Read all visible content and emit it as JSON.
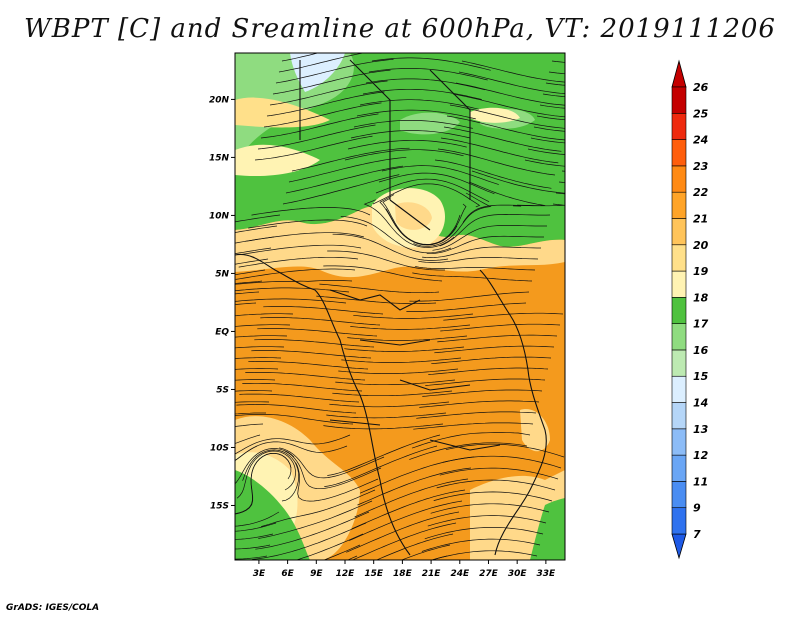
{
  "header": {
    "title": "WBPT [C] and Sreamline at 600hPa, VT: 2019111206"
  },
  "footer": {
    "credit": "GrADS: IGES/COLA"
  },
  "chart_data": {
    "type": "heatmap",
    "title": "WBPT [C] and Sreamline at 600hPa, VT: 2019111206",
    "variable": "WBPT [C]",
    "overlay": "streamlines",
    "level": "600hPa",
    "valid_time": "2019111206",
    "x_ticks": [
      "3E",
      "6E",
      "9E",
      "12E",
      "15E",
      "18E",
      "21E",
      "24E",
      "27E",
      "30E",
      "33E"
    ],
    "x_tick_values": [
      3,
      6,
      9,
      12,
      15,
      18,
      21,
      24,
      27,
      30,
      33
    ],
    "y_ticks": [
      "20N",
      "15N",
      "10N",
      "5N",
      "EQ",
      "5S",
      "10S",
      "15S"
    ],
    "y_tick_values": [
      20,
      15,
      10,
      5,
      0,
      -5,
      -10,
      -15
    ],
    "xlim": [
      0.5,
      35.0
    ],
    "ylim": [
      -19.7,
      24.0
    ],
    "colorbar": {
      "levels": [
        "7",
        "9",
        "11",
        "12",
        "13",
        "14",
        "15",
        "16",
        "17",
        "18",
        "19",
        "20",
        "21",
        "22",
        "23",
        "24",
        "25",
        "26"
      ],
      "colors": [
        "#1e5ae6",
        "#2f72ef",
        "#4a8df2",
        "#6aa6f5",
        "#8cbcf7",
        "#b5d6f8",
        "#dcefff",
        "#bdeab2",
        "#8fdc80",
        "#4fc23f",
        "#fff3b3",
        "#ffe08a",
        "#ffc45a",
        "#ffa428",
        "#ff8a14",
        "#ff5e0c",
        "#ef2a0e",
        "#c40000"
      ]
    },
    "field_colors": {
      "cool_green": "#8fdc80",
      "green": "#4fc23f",
      "light_yellow": "#fff3b3",
      "tan": "#ffd98a",
      "orange": "#f7a531",
      "dark_orange": "#f49a1d",
      "pale_blue": "#dcefff"
    }
  }
}
